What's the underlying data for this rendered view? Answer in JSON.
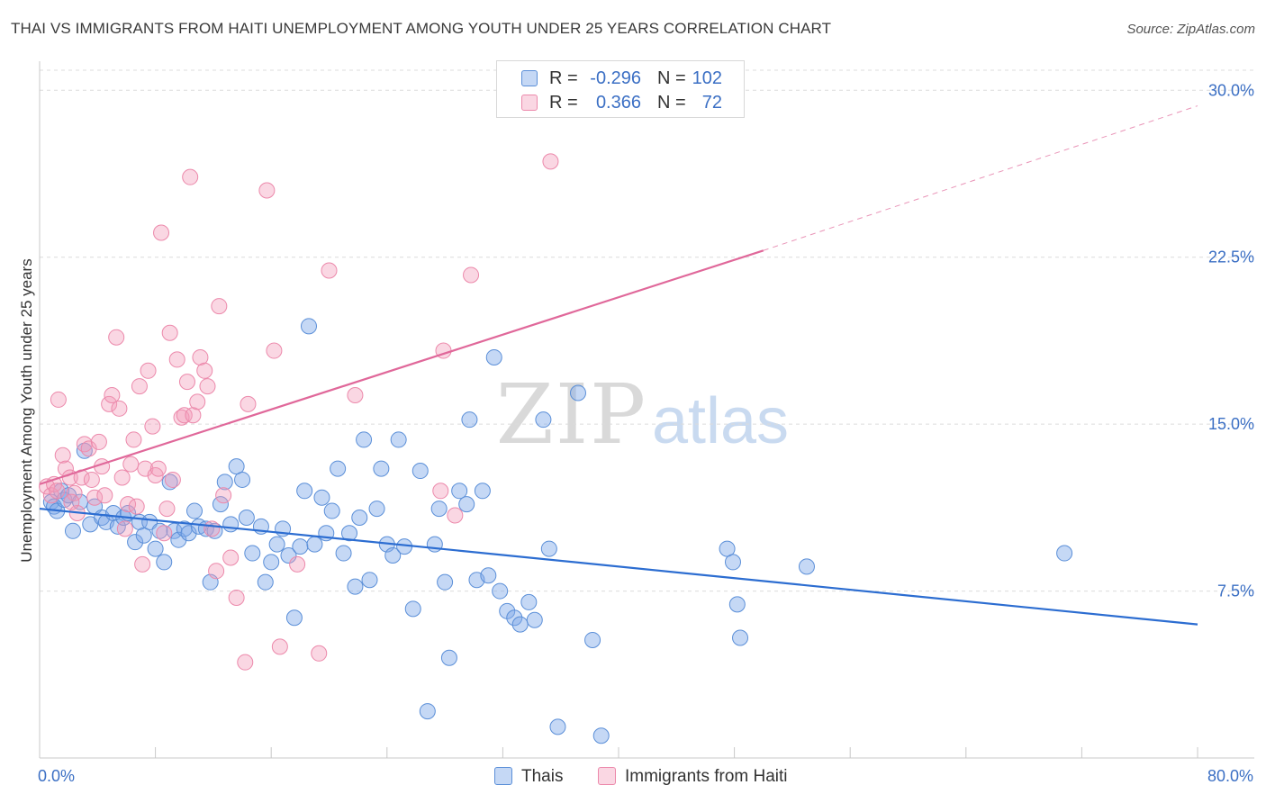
{
  "title": "THAI VS IMMIGRANTS FROM HAITI UNEMPLOYMENT AMONG YOUTH UNDER 25 YEARS CORRELATION CHART",
  "source": "Source: ZipAtlas.com",
  "watermark": {
    "zip": "ZIP",
    "atlas": "atlas"
  },
  "legend_top": {
    "rows": [
      {
        "r_label": "R =",
        "r_value": "-0.296",
        "n_label": "N =",
        "n_value": "102",
        "color": "#7fa9e8"
      },
      {
        "r_label": "R =",
        "r_value": "0.366",
        "n_label": "N =",
        "n_value": "72",
        "color": "#f29bb8"
      }
    ]
  },
  "colors": {
    "thais": "#5b8fd8",
    "haiti": "#ec89ab",
    "thais_line": "#2c6dd1",
    "haiti_line": "#e0689a",
    "tick_text": "#3b6fc4"
  },
  "chart_data": {
    "type": "scatter",
    "title": "THAI VS IMMIGRANTS FROM HAITI UNEMPLOYMENT AMONG YOUTH UNDER 25 YEARS CORRELATION CHART",
    "xlabel": "",
    "ylabel": "Unemployment Among Youth under 25 years",
    "xlim": [
      0,
      80
    ],
    "ylim": [
      0,
      30.9
    ],
    "x_tick_labels": [
      "0.0%",
      "80.0%"
    ],
    "y_ticks": [
      7.5,
      15.0,
      22.5,
      30.0
    ],
    "y_tick_labels": [
      "7.5%",
      "15.0%",
      "22.5%",
      "30.0%"
    ],
    "grid": true,
    "legend_position": "bottom-center",
    "series": [
      {
        "name": "Thais",
        "trend": {
          "x": [
            0,
            80
          ],
          "y": [
            11.2,
            6.0
          ]
        },
        "points": [
          [
            0.8,
            11.5
          ],
          [
            1.0,
            11.3
          ],
          [
            1.2,
            11.1
          ],
          [
            1.5,
            12.0
          ],
          [
            1.7,
            11.6
          ],
          [
            2.0,
            11.8
          ],
          [
            2.3,
            10.2
          ],
          [
            2.8,
            11.5
          ],
          [
            3.1,
            13.8
          ],
          [
            3.5,
            10.5
          ],
          [
            3.8,
            11.3
          ],
          [
            4.3,
            10.8
          ],
          [
            4.6,
            10.6
          ],
          [
            5.1,
            11.0
          ],
          [
            5.4,
            10.4
          ],
          [
            5.8,
            10.8
          ],
          [
            6.1,
            11.0
          ],
          [
            6.6,
            9.7
          ],
          [
            6.9,
            10.6
          ],
          [
            7.2,
            10.0
          ],
          [
            7.6,
            10.6
          ],
          [
            8.0,
            9.4
          ],
          [
            8.3,
            10.2
          ],
          [
            8.6,
            8.8
          ],
          [
            9.0,
            12.4
          ],
          [
            9.3,
            10.2
          ],
          [
            9.6,
            9.8
          ],
          [
            10.0,
            10.3
          ],
          [
            10.3,
            10.1
          ],
          [
            10.7,
            11.1
          ],
          [
            11.0,
            10.4
          ],
          [
            11.5,
            10.3
          ],
          [
            11.8,
            7.9
          ],
          [
            12.1,
            10.2
          ],
          [
            12.5,
            11.4
          ],
          [
            12.8,
            12.4
          ],
          [
            13.2,
            10.5
          ],
          [
            13.6,
            13.1
          ],
          [
            14.0,
            12.5
          ],
          [
            14.3,
            10.8
          ],
          [
            14.7,
            9.2
          ],
          [
            15.3,
            10.4
          ],
          [
            15.6,
            7.9
          ],
          [
            16.0,
            8.8
          ],
          [
            16.4,
            9.6
          ],
          [
            16.8,
            10.3
          ],
          [
            17.2,
            9.1
          ],
          [
            17.6,
            6.3
          ],
          [
            18.0,
            9.5
          ],
          [
            18.3,
            12.0
          ],
          [
            18.6,
            19.4
          ],
          [
            19.0,
            9.6
          ],
          [
            19.5,
            11.7
          ],
          [
            19.8,
            10.1
          ],
          [
            20.2,
            11.1
          ],
          [
            20.6,
            13.0
          ],
          [
            21.0,
            9.2
          ],
          [
            21.4,
            10.1
          ],
          [
            21.8,
            7.7
          ],
          [
            22.1,
            10.8
          ],
          [
            22.4,
            14.3
          ],
          [
            22.8,
            8.0
          ],
          [
            23.3,
            11.2
          ],
          [
            23.6,
            13.0
          ],
          [
            24.0,
            9.6
          ],
          [
            24.4,
            9.1
          ],
          [
            24.8,
            14.3
          ],
          [
            25.2,
            9.5
          ],
          [
            25.8,
            6.7
          ],
          [
            26.3,
            12.9
          ],
          [
            26.8,
            2.1
          ],
          [
            27.3,
            9.6
          ],
          [
            27.6,
            11.2
          ],
          [
            28.0,
            7.9
          ],
          [
            28.3,
            4.5
          ],
          [
            29.0,
            12.0
          ],
          [
            29.5,
            11.4
          ],
          [
            29.7,
            15.2
          ],
          [
            30.2,
            8.0
          ],
          [
            30.6,
            12.0
          ],
          [
            31.0,
            8.2
          ],
          [
            31.4,
            18.0
          ],
          [
            31.8,
            7.5
          ],
          [
            32.3,
            6.6
          ],
          [
            32.8,
            6.3
          ],
          [
            33.2,
            6.0
          ],
          [
            33.8,
            7.0
          ],
          [
            34.2,
            6.2
          ],
          [
            34.8,
            15.2
          ],
          [
            35.2,
            9.4
          ],
          [
            35.8,
            1.4
          ],
          [
            37.2,
            16.4
          ],
          [
            38.8,
            1.0
          ],
          [
            38.2,
            5.3
          ],
          [
            47.5,
            9.4
          ],
          [
            47.9,
            8.8
          ],
          [
            48.2,
            6.9
          ],
          [
            48.4,
            5.4
          ],
          [
            53.0,
            8.6
          ],
          [
            70.8,
            9.2
          ]
        ]
      },
      {
        "name": "Immigrants from Haiti",
        "trend": {
          "x": [
            0,
            50
          ],
          "y": [
            12.3,
            22.8
          ],
          "dashed_extension": {
            "x": [
              50,
              80
            ],
            "y": [
              22.8,
              29.3
            ]
          }
        },
        "points": [
          [
            0.5,
            12.2
          ],
          [
            0.8,
            11.8
          ],
          [
            1.0,
            12.3
          ],
          [
            1.3,
            16.1
          ],
          [
            1.6,
            13.6
          ],
          [
            1.8,
            13.0
          ],
          [
            2.1,
            12.6
          ],
          [
            2.4,
            11.9
          ],
          [
            2.6,
            11.0
          ],
          [
            2.9,
            12.6
          ],
          [
            3.1,
            14.1
          ],
          [
            3.4,
            13.9
          ],
          [
            3.6,
            12.5
          ],
          [
            3.8,
            11.7
          ],
          [
            4.1,
            14.2
          ],
          [
            4.3,
            13.1
          ],
          [
            4.5,
            11.8
          ],
          [
            4.8,
            15.9
          ],
          [
            5.0,
            16.3
          ],
          [
            5.3,
            18.9
          ],
          [
            5.5,
            15.7
          ],
          [
            5.7,
            12.6
          ],
          [
            5.9,
            10.3
          ],
          [
            6.1,
            11.4
          ],
          [
            6.3,
            13.2
          ],
          [
            6.5,
            14.3
          ],
          [
            6.7,
            11.3
          ],
          [
            6.9,
            16.7
          ],
          [
            7.1,
            8.7
          ],
          [
            7.3,
            13.0
          ],
          [
            7.5,
            17.4
          ],
          [
            7.8,
            14.9
          ],
          [
            8.0,
            12.7
          ],
          [
            8.2,
            13.0
          ],
          [
            8.4,
            23.6
          ],
          [
            8.6,
            10.1
          ],
          [
            8.8,
            11.2
          ],
          [
            9.0,
            19.1
          ],
          [
            9.2,
            12.5
          ],
          [
            9.5,
            17.9
          ],
          [
            9.8,
            15.3
          ],
          [
            10.0,
            15.4
          ],
          [
            10.2,
            16.9
          ],
          [
            10.4,
            26.1
          ],
          [
            10.6,
            15.4
          ],
          [
            10.9,
            16.0
          ],
          [
            11.1,
            18.0
          ],
          [
            11.4,
            17.4
          ],
          [
            11.6,
            16.7
          ],
          [
            11.9,
            10.3
          ],
          [
            12.4,
            20.3
          ],
          [
            12.2,
            8.4
          ],
          [
            12.7,
            11.8
          ],
          [
            13.2,
            9.0
          ],
          [
            13.6,
            7.2
          ],
          [
            14.2,
            4.3
          ],
          [
            14.4,
            15.9
          ],
          [
            15.7,
            25.5
          ],
          [
            16.2,
            18.3
          ],
          [
            16.6,
            5.0
          ],
          [
            17.8,
            8.7
          ],
          [
            19.3,
            4.7
          ],
          [
            20.0,
            21.9
          ],
          [
            21.8,
            16.3
          ],
          [
            27.7,
            12.0
          ],
          [
            27.9,
            18.3
          ],
          [
            28.7,
            10.9
          ],
          [
            29.8,
            21.7
          ],
          [
            35.3,
            26.8
          ],
          [
            44.5,
            29.8
          ],
          [
            1.2,
            12.0
          ],
          [
            2.2,
            11.5
          ]
        ]
      }
    ]
  }
}
